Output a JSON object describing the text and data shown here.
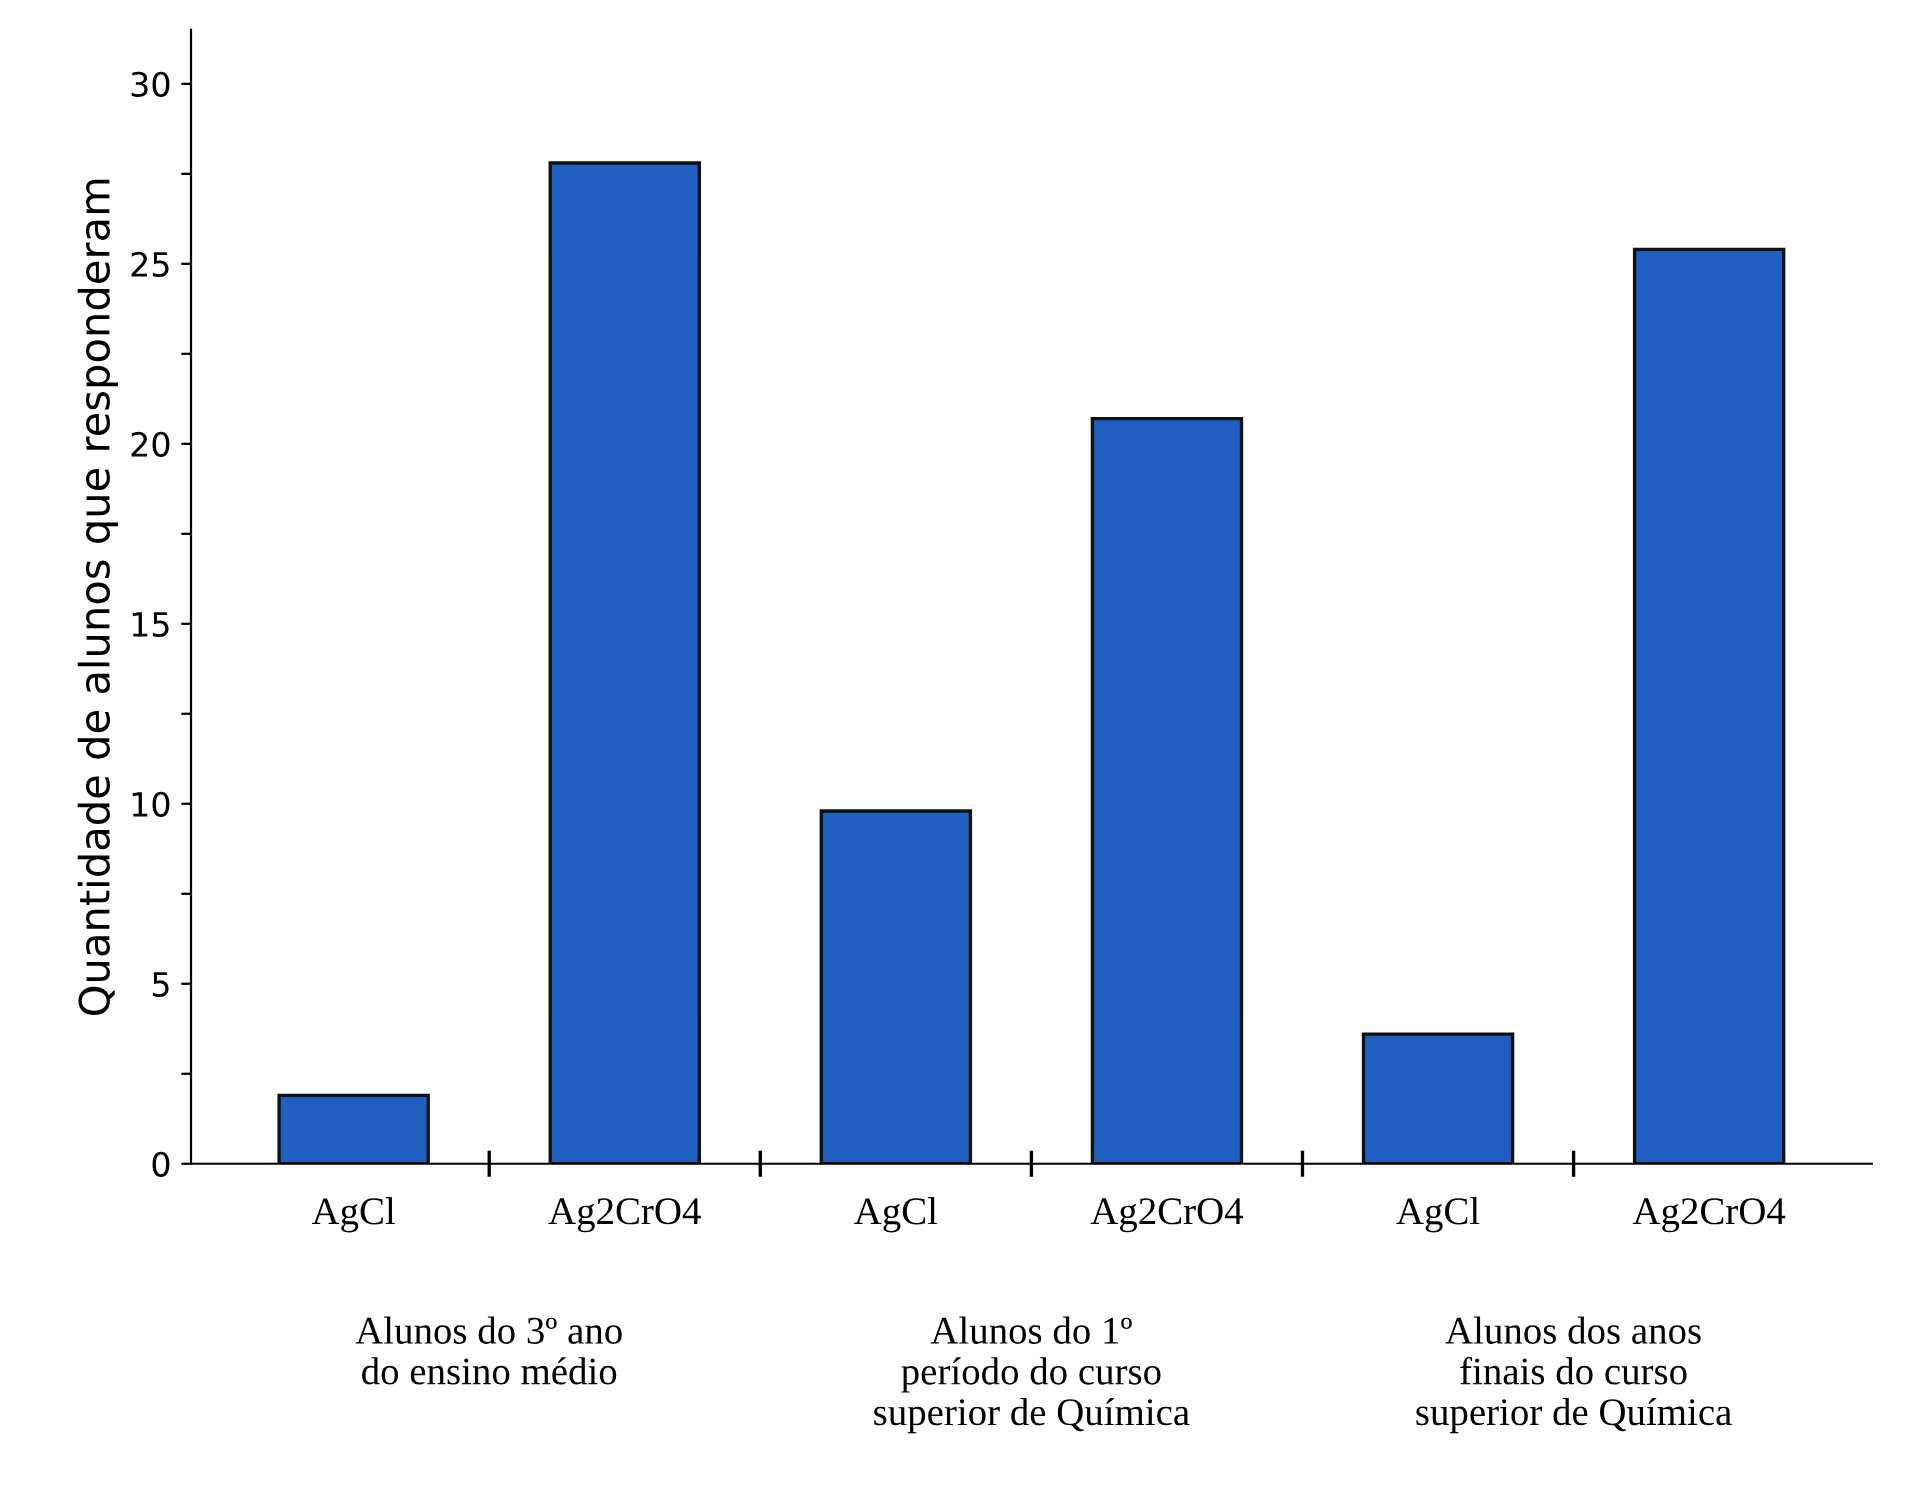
{
  "chart_data": {
    "type": "bar",
    "ylabel": "Quantidade de alunos que responderam",
    "categories": [
      "AgCl",
      "Ag2CrO4",
      "AgCl",
      "Ag2CrO4",
      "AgCl",
      "Ag2CrO4"
    ],
    "values": [
      1.9,
      27.8,
      9.8,
      20.7,
      3.6,
      25.4
    ],
    "color": "#1f5fbf",
    "ylim": [
      0,
      31.5
    ],
    "yticks": [
      0,
      {
        "value": 2.5,
        "label": null
      },
      5,
      {
        "value": 7.5,
        "label": null
      },
      10,
      {
        "value": 12.5,
        "label": null
      },
      15,
      {
        "value": 17.5,
        "label": null
      },
      20,
      {
        "value": 22.5,
        "label": null
      },
      25,
      {
        "value": 27.5,
        "label": null
      },
      30
    ],
    "annotations": [
      "Alunos do 3º ano\ndo ensino médio",
      "Alunos do 1º\nperíodo do curso\nsuperior de Química",
      "Alunos dos anos\nfinais do curso\nsuperior de Química"
    ],
    "grid": false,
    "legend": false
  }
}
